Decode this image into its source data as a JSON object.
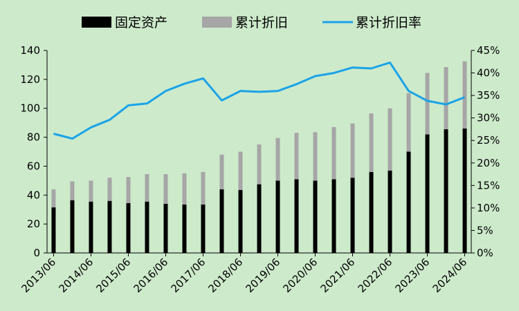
{
  "chart_data": {
    "type": "bar",
    "categories": [
      "2013/06",
      "2013/12",
      "2014/06",
      "2014/12",
      "2015/06",
      "2015/12",
      "2016/06",
      "2016/12",
      "2017/06",
      "2017/12",
      "2018/06",
      "2018/12",
      "2019/06",
      "2019/12",
      "2020/06",
      "2020/12",
      "2021/06",
      "2021/12",
      "2022/06",
      "2022/12",
      "2023/06",
      "2023/12",
      "2024/06"
    ],
    "x_tick_labels": [
      "2013/06",
      "2014/06",
      "2015/06",
      "2016/06",
      "2017/06",
      "2018/06",
      "2019/06",
      "2020/06",
      "2021/06",
      "2022/06",
      "2023/06",
      "2024/06"
    ],
    "series": [
      {
        "name": "固定资产",
        "kind": "bar",
        "axis": "left",
        "color": "#000000",
        "values": [
          31.5,
          36.5,
          35.5,
          36,
          34.5,
          35.5,
          34,
          33.5,
          33.5,
          44,
          43.5,
          47.5,
          50,
          51,
          50,
          51,
          52,
          56,
          57,
          70,
          82,
          85.5,
          86
        ]
      },
      {
        "name": "累计折旧",
        "kind": "bar",
        "axis": "left",
        "color": "#a6a6a6",
        "values": [
          12.5,
          13,
          14.5,
          16,
          18,
          19,
          20.5,
          21.5,
          22.5,
          24,
          26.5,
          27.5,
          29.5,
          32,
          33.5,
          36,
          37.5,
          40.5,
          43,
          40.5,
          42.5,
          43,
          46.5
        ]
      },
      {
        "name": "累计折旧率",
        "kind": "line",
        "axis": "right",
        "color": "#1aa3e8",
        "values": [
          0.265,
          0.254,
          0.279,
          0.296,
          0.328,
          0.332,
          0.36,
          0.376,
          0.388,
          0.339,
          0.36,
          0.358,
          0.36,
          0.375,
          0.393,
          0.4,
          0.412,
          0.41,
          0.423,
          0.36,
          0.338,
          0.33,
          0.346
        ]
      }
    ],
    "stacked": true,
    "y_left": {
      "min": 0,
      "max": 140,
      "step": 20,
      "ticks": [
        "0",
        "20",
        "40",
        "60",
        "80",
        "100",
        "120",
        "140"
      ]
    },
    "y_right": {
      "min": 0,
      "max": 0.45,
      "step": 0.05,
      "ticks": [
        "0%",
        "5%",
        "10%",
        "15%",
        "20%",
        "25%",
        "30%",
        "35%",
        "40%",
        "45%"
      ]
    },
    "legend_position": "top",
    "grid": false,
    "title": "",
    "xlabel": "",
    "ylabel": ""
  }
}
